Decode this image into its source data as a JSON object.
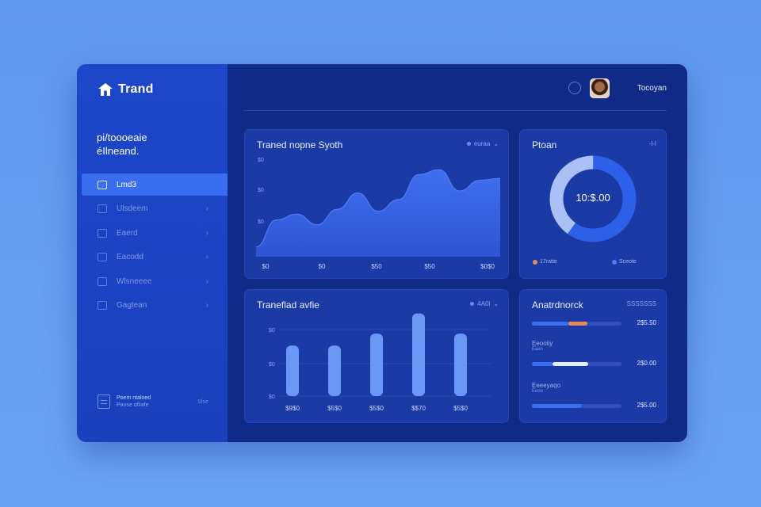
{
  "brand": {
    "name": "Trand"
  },
  "sidebar": {
    "welcome_line1": "pi/toooeaie",
    "welcome_line2": "éIlneand.",
    "items": [
      {
        "label": "Lmd3",
        "active": true,
        "icon": "grid-icon"
      },
      {
        "label": "Ulsdeem",
        "active": false,
        "icon": "square-icon"
      },
      {
        "label": "Eaerd",
        "active": false,
        "icon": "square-icon"
      },
      {
        "label": "Eacodd",
        "active": false,
        "icon": "square-icon"
      },
      {
        "label": "Wlsneeee",
        "active": false,
        "icon": "square-icon"
      },
      {
        "label": "Gagtean",
        "active": false,
        "icon": "square-icon"
      }
    ],
    "footer": {
      "title": "Poem ntaloed",
      "subtitle": "Pause ofiiafe",
      "right": "Sfse"
    }
  },
  "header": {
    "user_name": "Tocoyan"
  },
  "trend_card": {
    "title": "Traned nopne Syoth",
    "meta": "euraa"
  },
  "donut_card": {
    "title": "Ptoan",
    "meta": "-l-I",
    "center_value": "10:$.00",
    "legend": [
      "17ratte",
      "Sceote"
    ]
  },
  "bar_card": {
    "title": "Traneflad avfie",
    "meta": "4A0l"
  },
  "progress_card": {
    "title": "Anatrdnorck",
    "meta": "SSSSSSS",
    "rows": [
      {
        "label": "",
        "sub": "",
        "value": "2$5.50",
        "fill_start": 0.0,
        "fill_end": 0.41,
        "accent_start": 0.41,
        "accent_end": 0.62,
        "accent": "#e7895c"
      },
      {
        "label": "Eeooiiy",
        "sub": "Eaan",
        "value": "2$0.00",
        "fill_start": 0.0,
        "fill_end": 0.23,
        "accent_start": 0.23,
        "accent_end": 0.63,
        "accent": "#e6ecff"
      },
      {
        "label": "Eeeeyaqo",
        "sub": "Eeoo",
        "value": "2$5.00",
        "fill_start": 0.0,
        "fill_end": 0.56,
        "accent_start": 0,
        "accent_end": 0,
        "accent": "#3a6ef0"
      }
    ]
  },
  "chart_data": [
    {
      "type": "area",
      "title": "Traned nopne Syoth",
      "y_tick_labels": [
        "$0",
        "$0",
        "$0"
      ],
      "x_tick_labels": [
        "$0",
        "$0",
        "$50",
        "$50",
        "$0$0"
      ],
      "x": [
        0,
        1,
        2,
        3,
        4,
        5,
        6,
        7,
        8,
        9,
        10,
        11,
        12
      ],
      "values": [
        10,
        38,
        44,
        33,
        49,
        66,
        47,
        59,
        85,
        90,
        68,
        79,
        81
      ],
      "ylim": [
        0,
        100
      ],
      "color": "#3b62e0"
    },
    {
      "type": "pie",
      "title": "Ptoan",
      "values": [
        60,
        40
      ],
      "colors": [
        "#2d5fe8",
        "#a9c1f7"
      ]
    },
    {
      "type": "bar",
      "title": "Traneflad avfie",
      "y_tick_labels": [
        "$0",
        "$0",
        "$0"
      ],
      "categories": [
        "$9$0",
        "$5$0",
        "$5$0",
        "$$70",
        "$5$0"
      ],
      "values": [
        55,
        55,
        68,
        90,
        68
      ],
      "ylim": [
        0,
        100
      ],
      "color": "#6a98f6"
    }
  ]
}
